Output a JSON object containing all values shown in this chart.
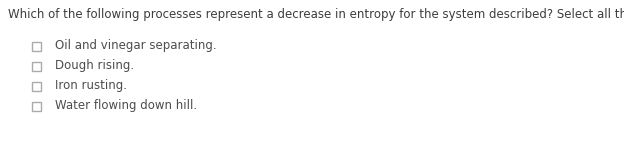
{
  "title": "Which of the following processes represent a decrease in entropy for the system described? Select all that apply.",
  "title_color": "#3d3d3d",
  "title_fontsize": 8.5,
  "options": [
    "Oil and vinegar separating.",
    "Dough rising.",
    "Iron rusting.",
    "Water flowing down hill."
  ],
  "option_color": "#4d4d4d",
  "option_fontsize": 8.5,
  "checkbox_edge_color": "#aaaaaa",
  "background_color": "#ffffff",
  "fig_width": 6.24,
  "fig_height": 1.43,
  "dpi": 100
}
